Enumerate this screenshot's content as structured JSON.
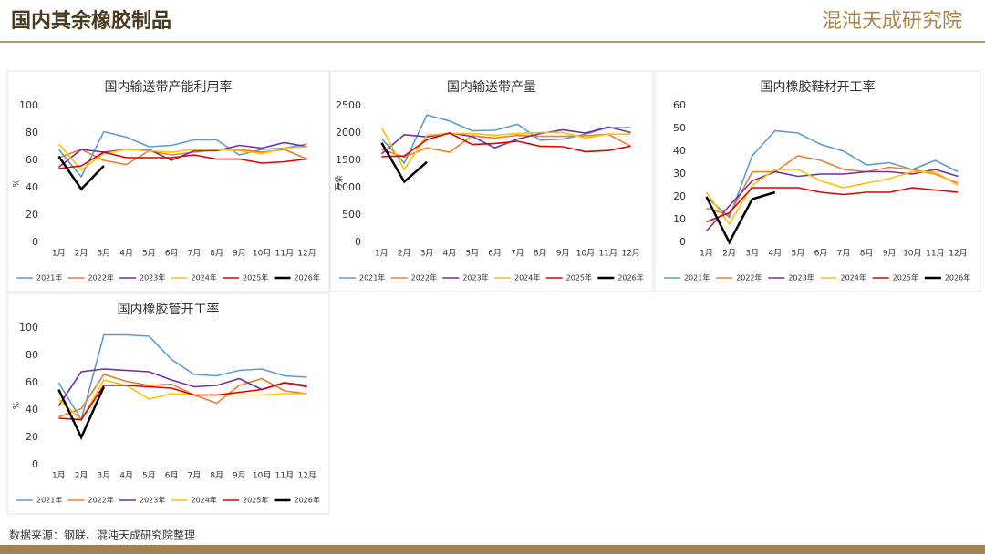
{
  "header": {
    "title": "国内其余橡胶制品",
    "logo": "混沌天成研究院"
  },
  "footer": {
    "source": "数据来源：钢联、混沌天成研究院整理"
  },
  "chart_data": [
    {
      "type": "line",
      "title": "国内输送带产能利用率",
      "y_label": "%",
      "categories": [
        "1月",
        "2月",
        "3月",
        "4月",
        "5月",
        "6月",
        "7月",
        "8月",
        "9月",
        "10月",
        "11月",
        "12月"
      ],
      "ylim": [
        0,
        100
      ],
      "yticks": [
        0,
        20,
        40,
        60,
        80,
        100
      ],
      "series": [
        {
          "name": "2021年",
          "color": "#5b9bd5",
          "values": [
            68,
            48,
            81,
            77,
            70,
            71,
            75,
            75,
            64,
            68,
            69,
            72
          ]
        },
        {
          "name": "2022年",
          "color": "#ed7d31",
          "values": [
            62,
            68,
            60,
            57,
            67,
            64,
            66,
            68,
            68,
            66,
            68,
            61
          ]
        },
        {
          "name": "2023年",
          "color": "#7030a0",
          "values": [
            55,
            68,
            66,
            68,
            68,
            60,
            67,
            67,
            71,
            69,
            73,
            70
          ]
        },
        {
          "name": "2024年",
          "color": "#ffc000",
          "values": [
            72,
            53,
            65,
            68,
            67,
            66,
            68,
            68,
            67,
            65,
            69,
            70
          ]
        },
        {
          "name": "2025年",
          "color": "#e00000",
          "values": [
            54,
            56,
            66,
            62,
            62,
            62,
            64,
            61,
            61,
            58,
            59,
            61
          ]
        },
        {
          "name": "2026年",
          "color": "#000000",
          "values": [
            63,
            39,
            56,
            null,
            null,
            null,
            null,
            null,
            null,
            null,
            null,
            null
          ]
        }
      ]
    },
    {
      "type": "line",
      "title": "国内输送带产量",
      "y_label": "万条",
      "categories": [
        "1月",
        "2月",
        "3月",
        "4月",
        "5月",
        "6月",
        "7月",
        "8月",
        "9月",
        "10月",
        "11月",
        "12月"
      ],
      "ylim": [
        0,
        2500
      ],
      "yticks": [
        0,
        500,
        1000,
        1500,
        2000,
        2500
      ],
      "series": [
        {
          "name": "2021年",
          "color": "#5b9bd5",
          "values": [
            1900,
            1450,
            2330,
            2220,
            2040,
            2050,
            2160,
            1870,
            1890,
            1980,
            2100,
            2100
          ]
        },
        {
          "name": "2022年",
          "color": "#ed7d31",
          "values": [
            1700,
            1560,
            1730,
            1650,
            1950,
            1910,
            1960,
            1940,
            1940,
            1950,
            1980,
            1760
          ]
        },
        {
          "name": "2023年",
          "color": "#7030a0",
          "values": [
            1620,
            1970,
            1930,
            2000,
            1940,
            1730,
            1890,
            1990,
            2060,
            2000,
            2110,
            2010
          ]
        },
        {
          "name": "2024年",
          "color": "#ffc000",
          "values": [
            2100,
            1330,
            1960,
            1990,
            1990,
            1960,
            1990,
            2010,
            2010,
            1910,
            1980,
            1980
          ]
        },
        {
          "name": "2025年",
          "color": "#e00000",
          "values": [
            1570,
            1580,
            1880,
            2000,
            1790,
            1810,
            1850,
            1760,
            1750,
            1660,
            1680,
            1760
          ]
        },
        {
          "name": "2026年",
          "color": "#000000",
          "values": [
            1820,
            1110,
            1470,
            null,
            null,
            null,
            null,
            null,
            null,
            null,
            null,
            null
          ]
        }
      ]
    },
    {
      "type": "line",
      "title": "国内橡胶鞋材开工率",
      "categories": [
        "1月",
        "2月",
        "3月",
        "4月",
        "5月",
        "6月",
        "7月",
        "8月",
        "9月",
        "10月",
        "11月",
        "12月"
      ],
      "ylim": [
        0,
        60
      ],
      "yticks": [
        0,
        10,
        20,
        30,
        40,
        50,
        60
      ],
      "series": [
        {
          "name": "2021年",
          "color": "#5b9bd5",
          "values": [
            20,
            11,
            38,
            49,
            48,
            43,
            40,
            34,
            35,
            32,
            36,
            31
          ]
        },
        {
          "name": "2022年",
          "color": "#ed7d31",
          "values": [
            15,
            12,
            31,
            31,
            38,
            36,
            32,
            31,
            33,
            32,
            30,
            26
          ]
        },
        {
          "name": "2023年",
          "color": "#7030a0",
          "values": [
            5,
            16,
            27,
            31,
            29,
            30,
            30,
            31,
            31,
            30,
            32,
            29
          ]
        },
        {
          "name": "2024年",
          "color": "#ffc000",
          "values": [
            22,
            8,
            25,
            32,
            32,
            27,
            24,
            26,
            28,
            31,
            31,
            25
          ]
        },
        {
          "name": "2025年",
          "color": "#e00000",
          "values": [
            9,
            13,
            24,
            24,
            24,
            22,
            21,
            22,
            22,
            24,
            23,
            22
          ]
        },
        {
          "name": "2026年",
          "color": "#000000",
          "values": [
            20,
            0,
            19,
            22,
            null,
            null,
            null,
            null,
            null,
            null,
            null,
            null
          ]
        }
      ]
    },
    {
      "type": "line",
      "title": "国内橡胶管开工率",
      "y_label": "%",
      "categories": [
        "1月",
        "2月",
        "3月",
        "4月",
        "5月",
        "6月",
        "7月",
        "8月",
        "9月",
        "10月",
        "11月",
        "12月"
      ],
      "ylim": [
        0,
        100
      ],
      "yticks": [
        0,
        20,
        40,
        60,
        80,
        100
      ],
      "series": [
        {
          "name": "2021年",
          "color": "#5b9bd5",
          "values": [
            60,
            33,
            95,
            95,
            94,
            77,
            66,
            65,
            69,
            70,
            65,
            64
          ]
        },
        {
          "name": "2022年",
          "color": "#ed7d31",
          "values": [
            35,
            41,
            66,
            61,
            58,
            59,
            51,
            45,
            58,
            63,
            54,
            52
          ]
        },
        {
          "name": "2023年",
          "color": "#7030a0",
          "values": [
            43,
            68,
            70,
            69,
            68,
            62,
            57,
            58,
            63,
            55,
            60,
            58
          ]
        },
        {
          "name": "2024年",
          "color": "#ffc000",
          "values": [
            48,
            33,
            62,
            58,
            48,
            52,
            51,
            51,
            51,
            51,
            52,
            52
          ]
        },
        {
          "name": "2025年",
          "color": "#e00000",
          "values": [
            34,
            33,
            58,
            58,
            57,
            56,
            51,
            51,
            53,
            55,
            60,
            57
          ]
        },
        {
          "name": "2026年",
          "color": "#000000",
          "values": [
            55,
            20,
            57,
            null,
            null,
            null,
            null,
            null,
            null,
            null,
            null,
            null
          ]
        }
      ]
    }
  ]
}
